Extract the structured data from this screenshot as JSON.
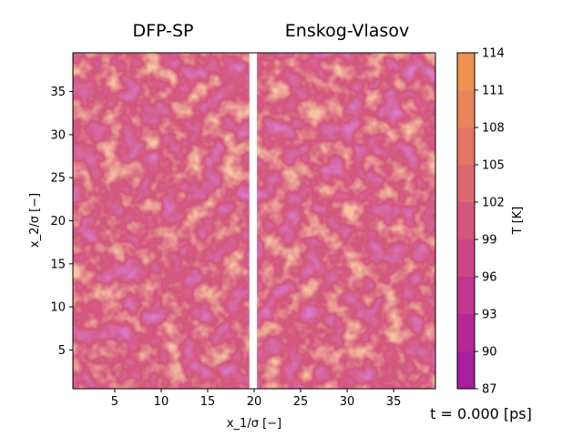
{
  "chart_data": {
    "type": "heatmap",
    "panels": [
      {
        "title": "DFP-SP"
      },
      {
        "title": "Enskog-Vlasov"
      }
    ],
    "xlabel": "x_1/σ [−]",
    "ylabel": "x_2/σ [−]",
    "xlim": [
      0.5,
      39.5
    ],
    "ylim": [
      0.5,
      39.5
    ],
    "x_gap": [
      19.5,
      20.3
    ],
    "x_ticks": [
      5,
      10,
      15,
      20,
      25,
      30,
      35
    ],
    "y_ticks": [
      5,
      10,
      15,
      20,
      25,
      30,
      35
    ],
    "colorbar": {
      "label": "T [K]",
      "ticks": [
        87,
        90,
        93,
        96,
        99,
        102,
        105,
        108,
        111,
        114
      ],
      "colors": [
        "#a81ea0",
        "#b52898",
        "#c0378f",
        "#ca4787",
        "#d3577d",
        "#dc6770",
        "#e37763",
        "#e98659",
        "#ee934f"
      ]
    },
    "annotation": "t = 0.000 [ps]",
    "field_summary": {
      "background_T": 100.5,
      "min_T": 93,
      "max_T": 109
    }
  }
}
